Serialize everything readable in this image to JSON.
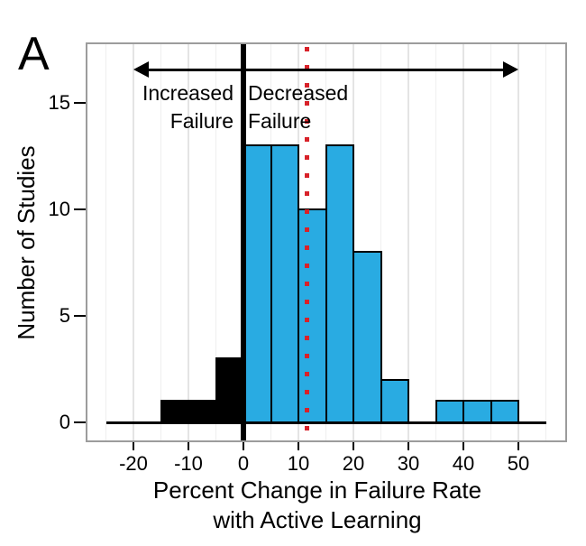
{
  "panel_label": "A",
  "chart_data": {
    "type": "histogram",
    "title": "",
    "xlabel": "Percent Change in Failure Rate with Active Learning",
    "xlabel_lines": [
      "Percent Change in Failure Rate",
      "with Active Learning"
    ],
    "ylabel": "Number of Studies",
    "xlim": [
      -28.5,
      58.5
    ],
    "ylim": [
      0,
      17.7
    ],
    "bin_width": 5,
    "grid": {
      "vertical_minor_every": 5,
      "vertical_major_every": 10,
      "minor_color": "#efefef",
      "major_color": "#e4e4e4"
    },
    "x_ticks": [
      {
        "label": "-20",
        "value": -20
      },
      {
        "label": "-10",
        "value": -10
      },
      {
        "label": "0",
        "value": 0
      },
      {
        "label": "10",
        "value": 10
      },
      {
        "label": "20",
        "value": 20
      },
      {
        "label": "30",
        "value": 30
      },
      {
        "label": "40",
        "value": 40
      },
      {
        "label": "50",
        "value": 50
      }
    ],
    "y_ticks": [
      {
        "label": "0",
        "value": 0
      },
      {
        "label": "5",
        "value": 5
      },
      {
        "label": "10",
        "value": 10
      },
      {
        "label": "15",
        "value": 15
      }
    ],
    "series": [
      {
        "name": "increased-failure-studies",
        "fill_color": "#000000",
        "bins": [
          {
            "x0": -15,
            "x1": -5,
            "count": 1
          },
          {
            "x0": -5,
            "x1": 0,
            "count": 3
          }
        ]
      },
      {
        "name": "decreased-failure-studies",
        "fill_color": "#29ABE2",
        "bins": [
          {
            "x0": 0,
            "x1": 5,
            "count": 13
          },
          {
            "x0": 5,
            "x1": 10,
            "count": 13
          },
          {
            "x0": 10,
            "x1": 15,
            "count": 10
          },
          {
            "x0": 15,
            "x1": 20,
            "count": 13
          },
          {
            "x0": 20,
            "x1": 25,
            "count": 8
          },
          {
            "x0": 25,
            "x1": 30,
            "count": 2
          },
          {
            "x0": 35,
            "x1": 40,
            "count": 1
          },
          {
            "x0": 40,
            "x1": 45,
            "count": 1
          },
          {
            "x0": 45,
            "x1": 50,
            "count": 1
          }
        ]
      }
    ],
    "baseline_extent": [
      -25,
      55
    ],
    "zero_line_x": 0,
    "mean_line": {
      "x": 11.6,
      "color": "#d8222a",
      "style": "dotted"
    },
    "annotation_arrow": {
      "x_start": -20,
      "x_end": 50
    },
    "annotations": {
      "left": {
        "line1": "Increased",
        "line2": "Failure"
      },
      "right": {
        "line1": "Decreased",
        "line2": "Failure"
      }
    }
  }
}
